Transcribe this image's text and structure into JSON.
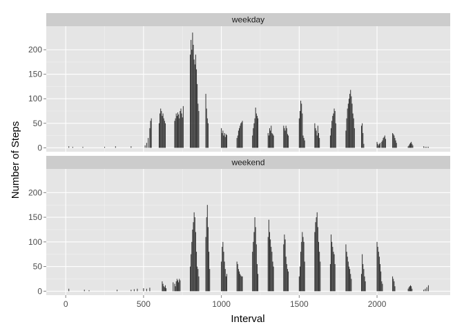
{
  "chart_data": {
    "type": "bar",
    "xlabel": "Interval",
    "ylabel": "Number of Steps",
    "xlim": [
      -125,
      2470
    ],
    "ylim": [
      -8,
      248
    ],
    "xticks": [
      0,
      500,
      1000,
      1500,
      2000
    ],
    "yticks": [
      0,
      50,
      100,
      150,
      200
    ],
    "grid": true,
    "bar_color": "#333333",
    "panel_background": "#e5e5e5",
    "strip_background": "#cccccc",
    "panels": [
      {
        "facet": "weekday",
        "x": [
          20,
          45,
          110,
          250,
          320,
          420,
          510,
          520,
          530,
          540,
          545,
          550,
          600,
          605,
          610,
          615,
          620,
          625,
          630,
          635,
          640,
          700,
          705,
          710,
          715,
          720,
          725,
          730,
          735,
          740,
          745,
          750,
          755,
          800,
          805,
          810,
          815,
          820,
          825,
          830,
          835,
          840,
          845,
          850,
          855,
          900,
          905,
          910,
          915,
          1000,
          1005,
          1010,
          1015,
          1020,
          1025,
          1030,
          1035,
          1100,
          1105,
          1110,
          1115,
          1120,
          1125,
          1130,
          1135,
          1200,
          1205,
          1210,
          1215,
          1220,
          1225,
          1230,
          1235,
          1300,
          1305,
          1310,
          1315,
          1320,
          1325,
          1330,
          1335,
          1400,
          1405,
          1410,
          1415,
          1420,
          1425,
          1430,
          1500,
          1505,
          1510,
          1515,
          1520,
          1525,
          1530,
          1535,
          1600,
          1605,
          1610,
          1615,
          1620,
          1625,
          1630,
          1700,
          1705,
          1710,
          1715,
          1720,
          1725,
          1730,
          1735,
          1800,
          1805,
          1810,
          1815,
          1820,
          1825,
          1830,
          1835,
          1840,
          1845,
          1850,
          1855,
          1900,
          1905,
          1910,
          1915,
          2000,
          2005,
          2010,
          2015,
          2020,
          2030,
          2035,
          2040,
          2045,
          2050,
          2055,
          2100,
          2105,
          2110,
          2115,
          2120,
          2125,
          2200,
          2205,
          2210,
          2215,
          2220,
          2225,
          2230,
          2300,
          2310,
          2320,
          2330
        ],
        "values": [
          3,
          2,
          2,
          2,
          3,
          3,
          5,
          10,
          20,
          40,
          55,
          60,
          50,
          70,
          80,
          75,
          65,
          70,
          60,
          55,
          50,
          55,
          60,
          70,
          65,
          72,
          68,
          60,
          75,
          80,
          70,
          62,
          85,
          190,
          220,
          200,
          235,
          210,
          180,
          170,
          190,
          160,
          130,
          90,
          75,
          110,
          80,
          60,
          50,
          40,
          30,
          35,
          25,
          30,
          22,
          28,
          26,
          20,
          25,
          35,
          40,
          45,
          50,
          52,
          55,
          25,
          40,
          50,
          60,
          82,
          70,
          65,
          60,
          30,
          25,
          40,
          35,
          45,
          30,
          28,
          25,
          45,
          40,
          35,
          45,
          40,
          28,
          25,
          60,
          75,
          96,
          90,
          70,
          25,
          20,
          15,
          50,
          40,
          35,
          25,
          45,
          30,
          20,
          25,
          40,
          55,
          65,
          70,
          80,
          75,
          50,
          35,
          60,
          80,
          90,
          100,
          110,
          118,
          105,
          90,
          70,
          60,
          40,
          45,
          50,
          30,
          8,
          12,
          8,
          5,
          8,
          10,
          12,
          15,
          20,
          22,
          25,
          18,
          30,
          28,
          25,
          20,
          15,
          10,
          3,
          5,
          8,
          10,
          12,
          8,
          5,
          3,
          2,
          2,
          2
        ],
        "data_labels": []
      },
      {
        "facet": "weekend",
        "x": [
          20,
          120,
          150,
          330,
          420,
          440,
          460,
          500,
          520,
          540,
          620,
          625,
          630,
          635,
          640,
          645,
          690,
          700,
          705,
          710,
          715,
          720,
          725,
          730,
          735,
          800,
          805,
          810,
          815,
          820,
          825,
          830,
          835,
          840,
          845,
          850,
          855,
          900,
          905,
          910,
          915,
          920,
          925,
          1000,
          1005,
          1010,
          1015,
          1020,
          1025,
          1030,
          1035,
          1100,
          1105,
          1110,
          1115,
          1120,
          1125,
          1130,
          1135,
          1200,
          1205,
          1210,
          1215,
          1220,
          1225,
          1230,
          1235,
          1300,
          1305,
          1310,
          1315,
          1320,
          1325,
          1330,
          1335,
          1400,
          1405,
          1410,
          1415,
          1420,
          1425,
          1430,
          1500,
          1505,
          1510,
          1515,
          1520,
          1525,
          1530,
          1535,
          1600,
          1605,
          1610,
          1615,
          1620,
          1625,
          1630,
          1635,
          1700,
          1705,
          1710,
          1715,
          1720,
          1725,
          1730,
          1800,
          1805,
          1810,
          1815,
          1820,
          1825,
          1830,
          1835,
          1900,
          1905,
          1910,
          1915,
          1920,
          1925,
          2000,
          2005,
          2010,
          2015,
          2020,
          2025,
          2030,
          2035,
          2100,
          2105,
          2110,
          2115,
          2200,
          2205,
          2210,
          2215,
          2220,
          2225,
          2300,
          2310,
          2320,
          2330
        ],
        "values": [
          5,
          3,
          2,
          3,
          3,
          4,
          5,
          6,
          5,
          7,
          20,
          15,
          10,
          8,
          12,
          6,
          18,
          15,
          10,
          20,
          25,
          22,
          18,
          25,
          22,
          50,
          75,
          100,
          125,
          140,
          160,
          150,
          120,
          80,
          50,
          45,
          30,
          110,
          150,
          175,
          130,
          80,
          45,
          60,
          90,
          100,
          80,
          60,
          45,
          30,
          35,
          60,
          55,
          45,
          40,
          35,
          32,
          30,
          30,
          80,
          100,
          120,
          150,
          130,
          95,
          55,
          35,
          110,
          145,
          120,
          105,
          90,
          80,
          60,
          50,
          95,
          115,
          105,
          70,
          55,
          45,
          40,
          30,
          50,
          80,
          100,
          120,
          110,
          100,
          60,
          120,
          140,
          150,
          160,
          130,
          100,
          80,
          60,
          55,
          115,
          100,
          90,
          80,
          75,
          55,
          95,
          80,
          70,
          60,
          50,
          45,
          35,
          25,
          35,
          75,
          55,
          45,
          30,
          20,
          100,
          90,
          80,
          70,
          55,
          40,
          20,
          15,
          30,
          25,
          20,
          10,
          5,
          8,
          10,
          12,
          10,
          5,
          3,
          5,
          8,
          12
        ],
        "data_labels": []
      }
    ]
  }
}
